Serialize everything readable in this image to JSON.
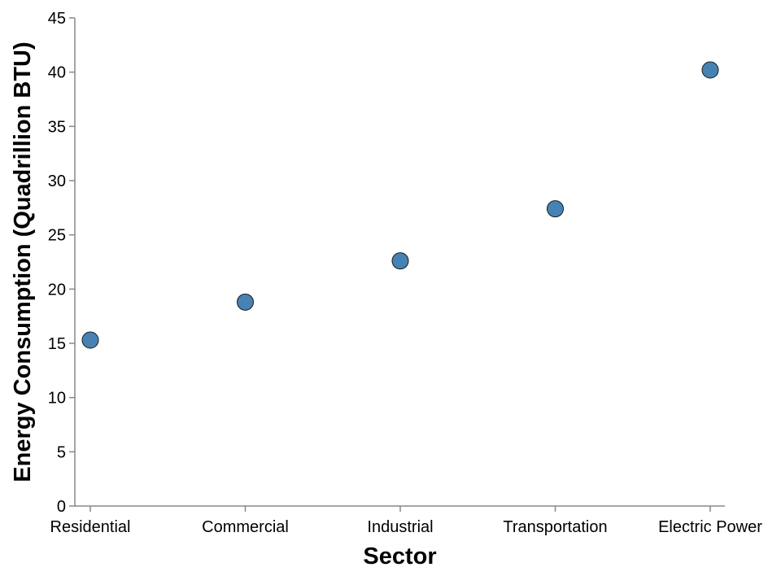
{
  "chart_data": {
    "type": "scatter",
    "title": "",
    "xlabel": "Sector",
    "ylabel": "Energy Consumption (Quadrillion BTU)",
    "categories": [
      "Residential",
      "Commercial",
      "Industrial",
      "Transportation",
      "Electric Power"
    ],
    "values": [
      15.3,
      18.8,
      22.6,
      27.4,
      40.2
    ],
    "ylim": [
      0,
      45
    ],
    "yticks": [
      "0",
      "5",
      "10",
      "15",
      "20",
      "25",
      "30",
      "35",
      "40",
      "45"
    ],
    "grid": false,
    "legend": "none",
    "colors": {
      "point_fill": "#4682b4",
      "point_stroke": "#1a1a1a",
      "axis": "#888888"
    }
  }
}
